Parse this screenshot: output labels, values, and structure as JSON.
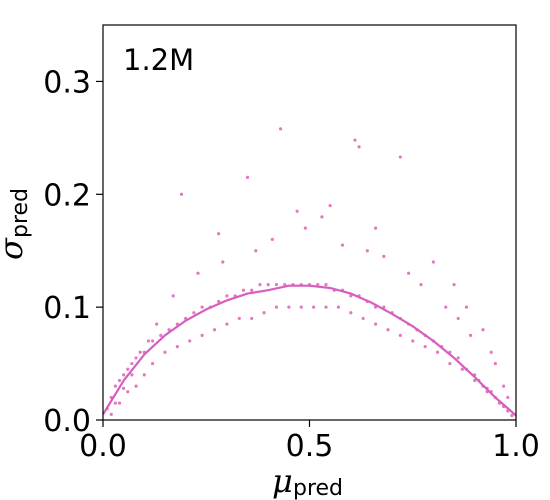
{
  "chart_data": {
    "type": "scatter",
    "annotation": "1.2M",
    "xlabel": {
      "symbol": "μ",
      "subscript": "pred"
    },
    "ylabel": {
      "symbol": "σ",
      "subscript": "pred"
    },
    "xlim": [
      0.0,
      1.0
    ],
    "ylim": [
      0.0,
      0.35
    ],
    "xticks": [
      "0.0",
      "0.5",
      "1.0"
    ],
    "yticks": [
      "0.0",
      "0.1",
      "0.2",
      "0.3"
    ],
    "grid": false,
    "color": "#e377c2",
    "trend_line": {
      "x": [
        0.0,
        0.05,
        0.1,
        0.15,
        0.2,
        0.25,
        0.3,
        0.35,
        0.4,
        0.45,
        0.5,
        0.55,
        0.6,
        0.65,
        0.7,
        0.75,
        0.8,
        0.85,
        0.9,
        0.95,
        1.0
      ],
      "y": [
        0.005,
        0.035,
        0.058,
        0.075,
        0.088,
        0.098,
        0.106,
        0.112,
        0.115,
        0.119,
        0.119,
        0.117,
        0.112,
        0.104,
        0.094,
        0.083,
        0.07,
        0.055,
        0.038,
        0.02,
        0.004
      ]
    },
    "scatter_points": {
      "x": [
        0.01,
        0.02,
        0.03,
        0.04,
        0.05,
        0.06,
        0.07,
        0.08,
        0.09,
        0.1,
        0.12,
        0.14,
        0.16,
        0.18,
        0.2,
        0.22,
        0.24,
        0.26,
        0.28,
        0.3,
        0.32,
        0.34,
        0.36,
        0.38,
        0.4,
        0.42,
        0.44,
        0.46,
        0.48,
        0.5,
        0.52,
        0.54,
        0.56,
        0.58,
        0.6,
        0.62,
        0.64,
        0.66,
        0.68,
        0.7,
        0.72,
        0.74,
        0.76,
        0.78,
        0.8,
        0.82,
        0.84,
        0.86,
        0.88,
        0.9,
        0.91,
        0.92,
        0.93,
        0.94,
        0.95,
        0.96,
        0.97,
        0.98,
        0.99,
        0.02,
        0.04,
        0.06,
        0.08,
        0.1,
        0.12,
        0.15,
        0.18,
        0.21,
        0.24,
        0.27,
        0.3,
        0.33,
        0.36,
        0.39,
        0.42,
        0.45,
        0.48,
        0.51,
        0.54,
        0.57,
        0.6,
        0.63,
        0.66,
        0.69,
        0.72,
        0.75,
        0.78,
        0.81,
        0.84,
        0.87,
        0.9,
        0.93,
        0.96,
        0.43,
        0.61,
        0.62,
        0.72,
        0.19,
        0.35,
        0.55,
        0.47,
        0.53,
        0.66,
        0.28,
        0.8,
        0.85,
        0.88,
        0.92,
        0.94,
        0.97,
        0.03,
        0.05,
        0.07,
        0.11,
        0.13,
        0.17,
        0.23,
        0.29,
        0.37,
        0.41,
        0.49,
        0.58,
        0.64,
        0.68,
        0.74,
        0.77,
        0.83,
        0.86,
        0.89,
        0.95,
        0.98
      ],
      "y": [
        0.01,
        0.02,
        0.03,
        0.035,
        0.04,
        0.045,
        0.05,
        0.055,
        0.06,
        0.06,
        0.07,
        0.075,
        0.08,
        0.085,
        0.09,
        0.095,
        0.1,
        0.1,
        0.105,
        0.11,
        0.11,
        0.115,
        0.115,
        0.12,
        0.12,
        0.12,
        0.12,
        0.12,
        0.12,
        0.12,
        0.12,
        0.12,
        0.115,
        0.115,
        0.11,
        0.11,
        0.105,
        0.1,
        0.1,
        0.095,
        0.09,
        0.085,
        0.08,
        0.075,
        0.07,
        0.065,
        0.06,
        0.055,
        0.045,
        0.04,
        0.035,
        0.03,
        0.028,
        0.025,
        0.02,
        0.015,
        0.012,
        0.008,
        0.004,
        0.005,
        0.015,
        0.025,
        0.03,
        0.04,
        0.05,
        0.06,
        0.065,
        0.07,
        0.075,
        0.08,
        0.085,
        0.09,
        0.09,
        0.095,
        0.1,
        0.1,
        0.1,
        0.1,
        0.1,
        0.1,
        0.095,
        0.09,
        0.085,
        0.08,
        0.075,
        0.07,
        0.065,
        0.06,
        0.05,
        0.045,
        0.035,
        0.025,
        0.015,
        0.258,
        0.248,
        0.242,
        0.233,
        0.2,
        0.215,
        0.19,
        0.185,
        0.18,
        0.17,
        0.165,
        0.14,
        0.12,
        0.1,
        0.08,
        0.06,
        0.03,
        0.015,
        0.028,
        0.04,
        0.07,
        0.085,
        0.11,
        0.13,
        0.14,
        0.15,
        0.16,
        0.17,
        0.155,
        0.15,
        0.145,
        0.13,
        0.12,
        0.1,
        0.09,
        0.075,
        0.05,
        0.02
      ]
    }
  }
}
